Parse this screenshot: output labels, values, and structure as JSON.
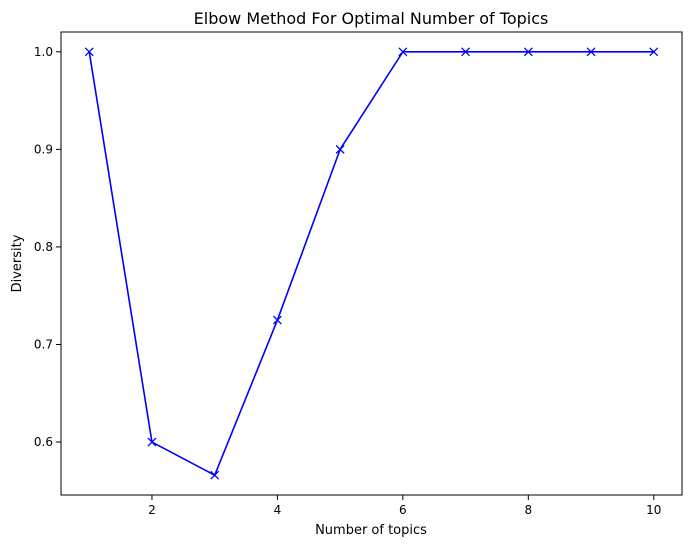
{
  "chart_data": {
    "type": "line",
    "title": "Elbow Method For Optimal Number of Topics",
    "xlabel": "Number of topics",
    "ylabel": "Diversity",
    "x": [
      1,
      2,
      3,
      4,
      5,
      6,
      7,
      8,
      9,
      10
    ],
    "series": [
      {
        "values": [
          1.0,
          0.6,
          0.566,
          0.725,
          0.9,
          1.0,
          1.0,
          1.0,
          1.0,
          1.0
        ],
        "color": "#0000ff",
        "marker": "x"
      }
    ],
    "xlim": [
      0.55,
      10.45
    ],
    "ylim": [
      0.5457,
      1.0203
    ],
    "xticks": [
      2,
      4,
      6,
      8,
      10
    ],
    "xtick_labels": [
      "2",
      "4",
      "6",
      "8",
      "10"
    ],
    "yticks": [
      0.6,
      0.7,
      0.8,
      0.9,
      1.0
    ],
    "ytick_labels": [
      "0.6",
      "0.7",
      "0.8",
      "0.9",
      "1.0"
    ],
    "grid": false,
    "legend": "none"
  }
}
